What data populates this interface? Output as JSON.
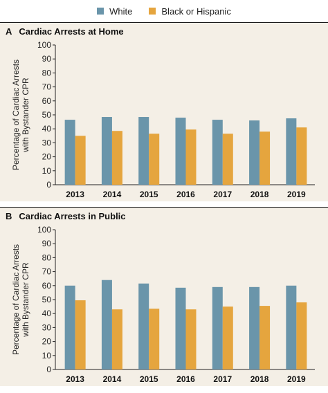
{
  "legend": [
    {
      "label": "White",
      "color": "#6a95aa"
    },
    {
      "label": "Black or Hispanic",
      "color": "#e5a53e"
    }
  ],
  "chart_data": [
    {
      "type": "bar",
      "panel_letter": "A",
      "title": "Cardiac Arrests at Home",
      "ylabel": "Percentage of Cardiac Arrests with Bystander CPR",
      "xlabel": "",
      "categories": [
        "2013",
        "2014",
        "2015",
        "2016",
        "2017",
        "2018",
        "2019"
      ],
      "series": [
        {
          "name": "White",
          "values": [
            46.5,
            48.5,
            48.5,
            48,
            46.5,
            46,
            47.5
          ]
        },
        {
          "name": "Black or Hispanic",
          "values": [
            35,
            38.5,
            36.5,
            39.5,
            36.5,
            38,
            41
          ]
        }
      ],
      "ylim": [
        0,
        100
      ],
      "yticks": [
        0,
        10,
        20,
        30,
        40,
        50,
        60,
        70,
        80,
        90,
        100
      ],
      "grid": false
    },
    {
      "type": "bar",
      "panel_letter": "B",
      "title": "Cardiac Arrests in Public",
      "ylabel": "Percentage of Cardiac Arrests with Bystander CPR",
      "xlabel": "",
      "categories": [
        "2013",
        "2014",
        "2015",
        "2016",
        "2017",
        "2018",
        "2019"
      ],
      "series": [
        {
          "name": "White",
          "values": [
            60,
            64,
            61.5,
            58.5,
            59,
            59,
            60
          ]
        },
        {
          "name": "Black or Hispanic",
          "values": [
            49.5,
            43,
            43.5,
            43,
            45,
            45.5,
            48
          ]
        }
      ],
      "ylim": [
        0,
        100
      ],
      "yticks": [
        0,
        10,
        20,
        30,
        40,
        50,
        60,
        70,
        80,
        90,
        100
      ],
      "grid": false
    }
  ]
}
